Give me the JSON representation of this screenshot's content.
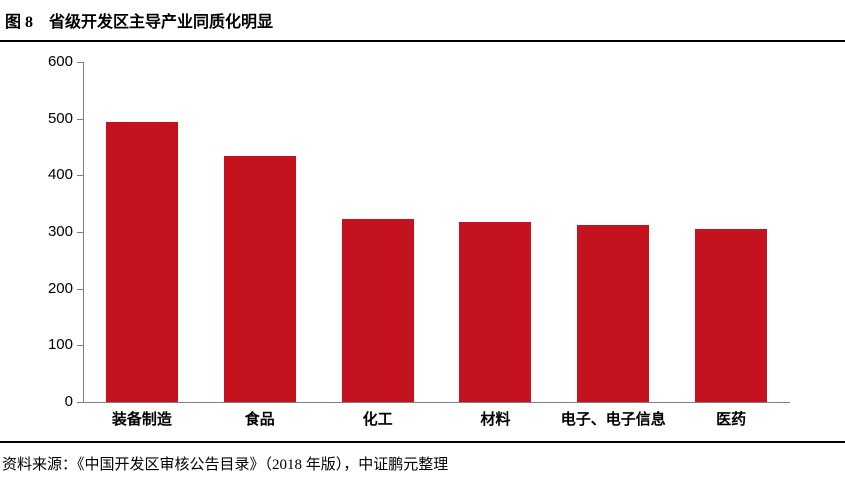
{
  "header": {
    "figure_label": "图 8",
    "title": "省级开发区主导产业同质化明显"
  },
  "footer": {
    "source": "资料来源：《中国开发区审核公告目录》（2018 年版），中证鹏元整理"
  },
  "colors": {
    "bar": "#C5121F",
    "axis": "#808080",
    "rule": "#000000",
    "text": "#000000"
  },
  "chart_data": {
    "type": "bar",
    "title": "省级开发区主导产业同质化明显",
    "categories": [
      "装备制造",
      "食品",
      "化工",
      "材料",
      "电子、电子信息",
      "医药"
    ],
    "values": [
      495,
      435,
      323,
      317,
      313,
      305
    ],
    "xlabel": "",
    "ylabel": "",
    "ylim": [
      0,
      600
    ],
    "yticks": [
      0,
      100,
      200,
      300,
      400,
      500,
      600
    ],
    "grid": false,
    "legend": "none",
    "bar_color": "#C5121F"
  }
}
